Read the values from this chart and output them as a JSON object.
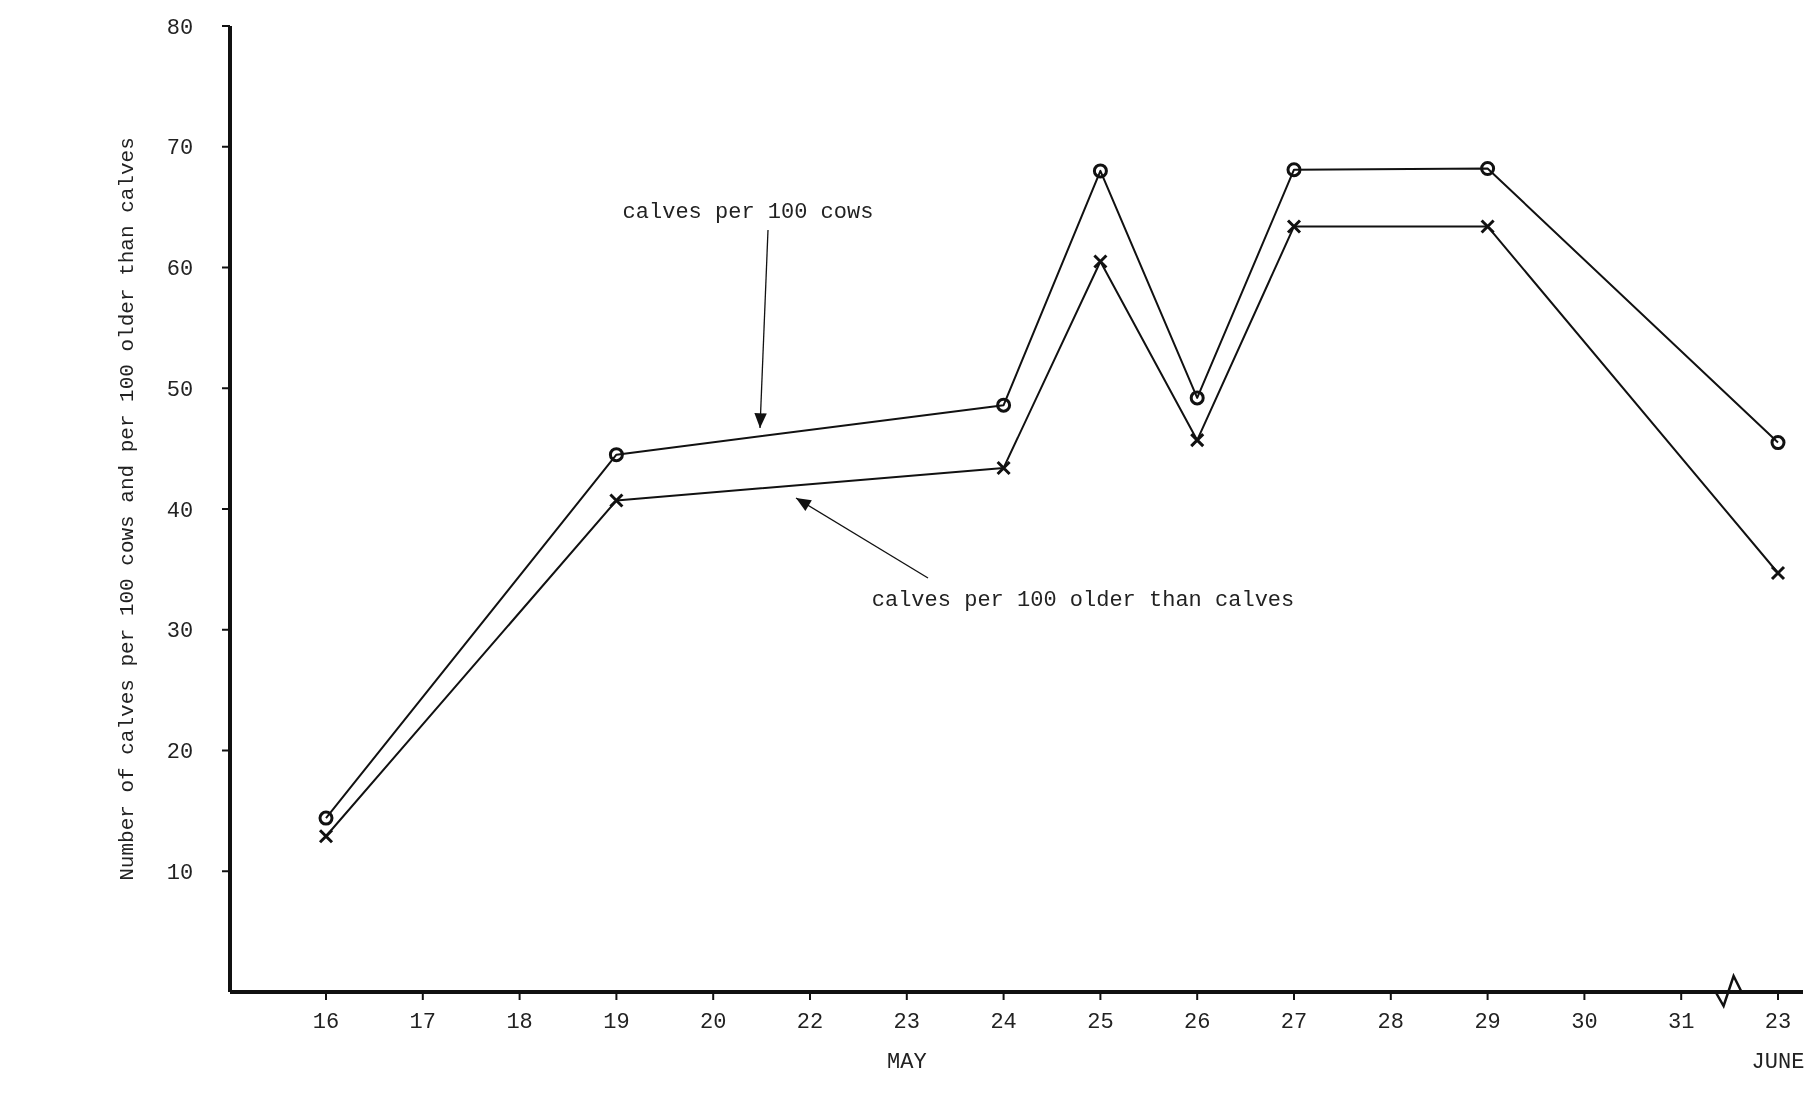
{
  "chart_data": {
    "type": "line",
    "ylabel": "Number of calves per 100 cows and per 100 older than calves",
    "categories": [
      "16",
      "17",
      "18",
      "19",
      "20",
      "22",
      "23",
      "24",
      "25",
      "26",
      "27",
      "28",
      "29",
      "30",
      "31",
      "23"
    ],
    "series": [
      {
        "color": "#111111",
        "marker": "circle",
        "values": [
          14.4,
          null,
          null,
          44.5,
          null,
          null,
          null,
          48.6,
          68,
          49.2,
          68.1,
          null,
          68.2,
          null,
          null,
          45.5
        ]
      },
      {
        "color": "#111111",
        "marker": "cross",
        "values": [
          12.9,
          null,
          null,
          40.7,
          null,
          null,
          null,
          43.4,
          60.5,
          45.7,
          63.4,
          null,
          63.4,
          null,
          null,
          34.7
        ]
      }
    ],
    "annotations": [
      "calves per 100 cows",
      "calves per 100 older than calves",
      "MAY",
      "JUNE"
    ],
    "ylim": [
      0,
      80
    ],
    "yticks": [
      10,
      20,
      30,
      40,
      50,
      60,
      70,
      80
    ],
    "grid": false
  }
}
